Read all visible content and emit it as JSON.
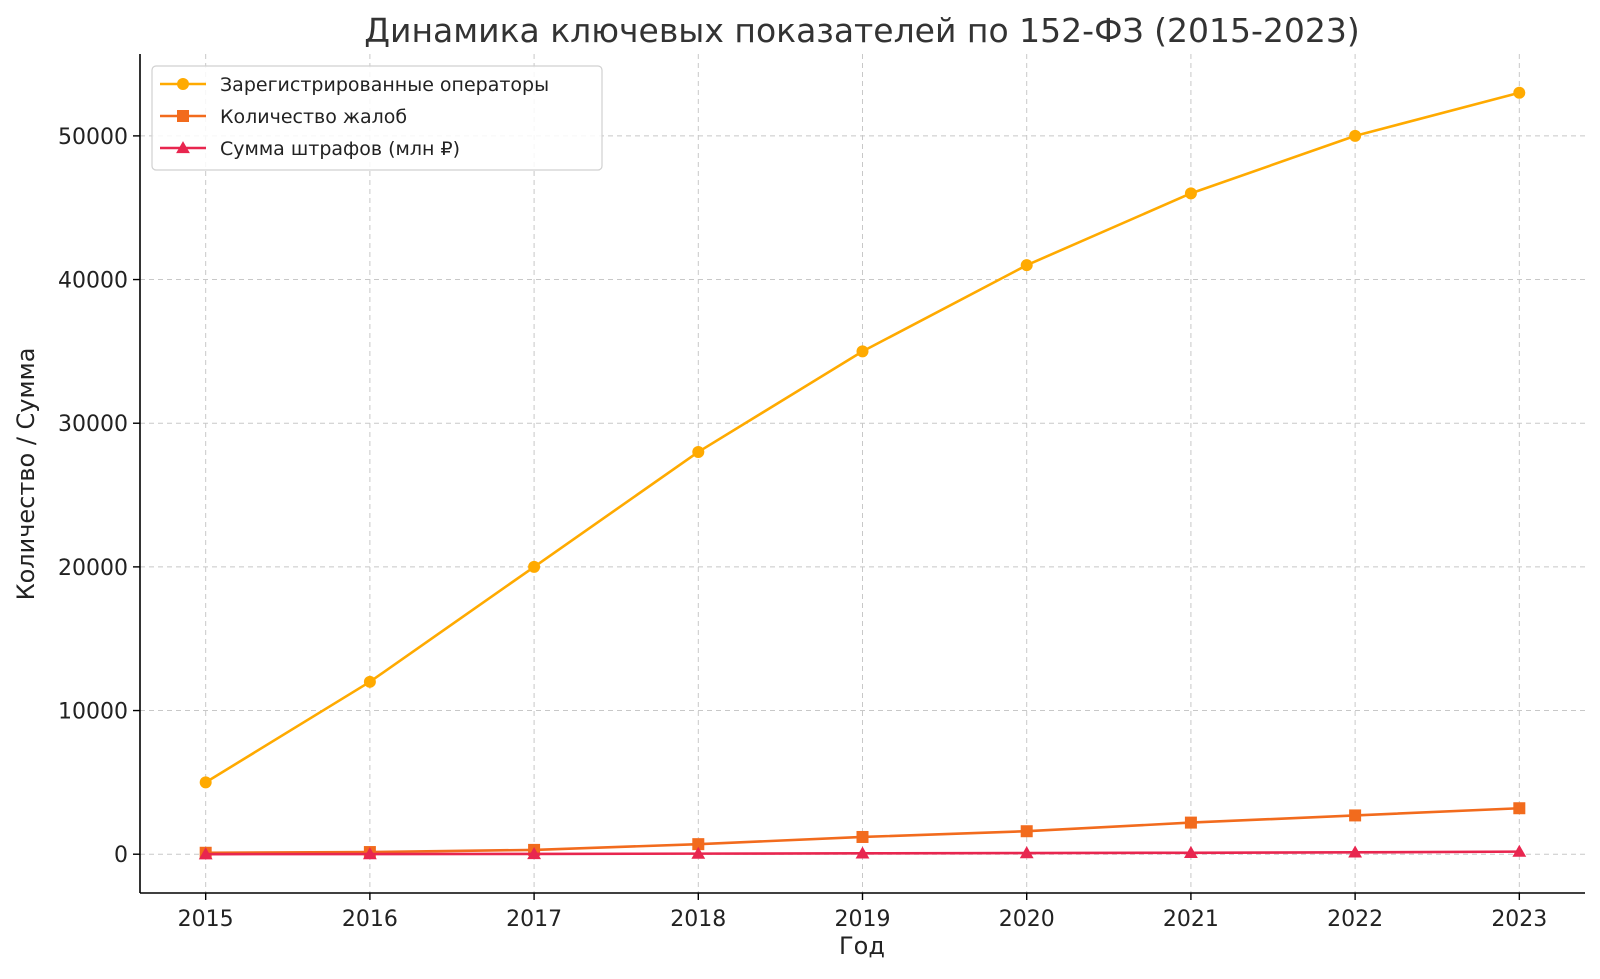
{
  "chart_data": {
    "type": "line",
    "title": "Динамика ключевых показателей по 152-ФЗ (2015-2023)",
    "xlabel": "Год",
    "ylabel": "Количество / Сумма",
    "x": [
      2015,
      2016,
      2017,
      2018,
      2019,
      2020,
      2021,
      2022,
      2023
    ],
    "x_tick_labels": [
      "2015",
      "2016",
      "2017",
      "2018",
      "2019",
      "2020",
      "2021",
      "2022",
      "2023"
    ],
    "y_ticks": [
      0,
      10000,
      20000,
      30000,
      40000,
      50000
    ],
    "y_tick_labels": [
      "0",
      "10000",
      "20000",
      "30000",
      "40000",
      "50000"
    ],
    "xlim": [
      2014.6,
      2023.4
    ],
    "ylim": [
      -2700,
      55700
    ],
    "grid": true,
    "legend_position": "top-left",
    "series": [
      {
        "name": "Зарегистрированные операторы",
        "color": "#FFAA00",
        "marker": "circle",
        "values": [
          5000,
          12000,
          20000,
          28000,
          35000,
          41000,
          46000,
          50000,
          53000
        ]
      },
      {
        "name": "Количество жалоб",
        "color": "#F26B1D",
        "marker": "square",
        "values": [
          100,
          150,
          300,
          700,
          1200,
          1600,
          2200,
          2700,
          3200
        ]
      },
      {
        "name": "Сумма штрафов (млн ₽)",
        "color": "#E8264F",
        "marker": "triangle",
        "values": [
          5,
          10,
          20,
          40,
          60,
          80,
          100,
          130,
          180
        ]
      }
    ]
  }
}
